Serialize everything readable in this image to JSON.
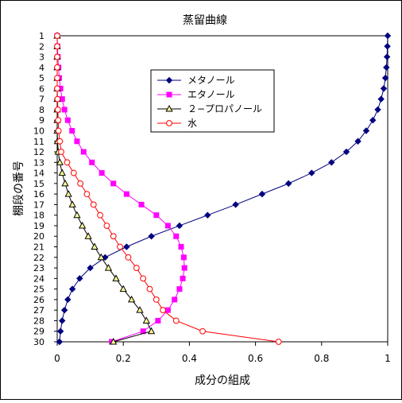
{
  "chart_data": {
    "type": "line",
    "title": "蒸留曲線",
    "xlabel": "成分の組成",
    "ylabel": "棚段の番号",
    "xlim": [
      0,
      1
    ],
    "x_ticks": [
      "0",
      "0.2",
      "0.4",
      "0.6",
      "0.8",
      "1"
    ],
    "y_categories": [
      "1",
      "2",
      "3",
      "4",
      "5",
      "6",
      "7",
      "8",
      "9",
      "10",
      "11",
      "12",
      "13",
      "14",
      "15",
      "16",
      "17",
      "18",
      "19",
      "20",
      "21",
      "22",
      "23",
      "24",
      "25",
      "26",
      "27",
      "28",
      "29",
      "30"
    ],
    "grid": false,
    "legend_position": "upper-center",
    "series": [
      {
        "name": "メタノール",
        "color": "#000080",
        "marker": "diamond",
        "values": [
          1.0,
          0.999,
          0.998,
          0.996,
          0.993,
          0.988,
          0.98,
          0.97,
          0.955,
          0.935,
          0.91,
          0.875,
          0.83,
          0.77,
          0.7,
          0.62,
          0.54,
          0.455,
          0.37,
          0.285,
          0.21,
          0.145,
          0.1,
          0.068,
          0.046,
          0.032,
          0.022,
          0.015,
          0.01,
          0.007
        ]
      },
      {
        "name": "エタノール",
        "color": "#ff00ff",
        "marker": "square",
        "values": [
          0.0,
          0.001,
          0.002,
          0.004,
          0.006,
          0.01,
          0.015,
          0.022,
          0.032,
          0.045,
          0.06,
          0.08,
          0.105,
          0.135,
          0.17,
          0.21,
          0.255,
          0.3,
          0.335,
          0.36,
          0.375,
          0.383,
          0.385,
          0.38,
          0.37,
          0.355,
          0.335,
          0.305,
          0.26,
          0.165
        ]
      },
      {
        "name": "２−プロパノール",
        "color": "#000000",
        "fill": "#ffff99",
        "marker": "triangle",
        "values": [
          0.0,
          0.0,
          0.0,
          0.0,
          0.0,
          0.0,
          0.0,
          0.0,
          0.0,
          0.0,
          0.001,
          0.003,
          0.008,
          0.015,
          0.024,
          0.034,
          0.046,
          0.06,
          0.076,
          0.094,
          0.113,
          0.133,
          0.155,
          0.178,
          0.2,
          0.225,
          0.25,
          0.27,
          0.285,
          0.17
        ]
      },
      {
        "name": "水",
        "color": "#ff0000",
        "fill": "#ffffff",
        "marker": "circle",
        "values": [
          0.0,
          0.0,
          0.0,
          0.0,
          0.0,
          0.0,
          0.001,
          0.002,
          0.003,
          0.004,
          0.008,
          0.012,
          0.03,
          0.05,
          0.07,
          0.09,
          0.11,
          0.13,
          0.15,
          0.17,
          0.19,
          0.215,
          0.24,
          0.26,
          0.28,
          0.3,
          0.32,
          0.36,
          0.44,
          0.67
        ]
      }
    ]
  }
}
